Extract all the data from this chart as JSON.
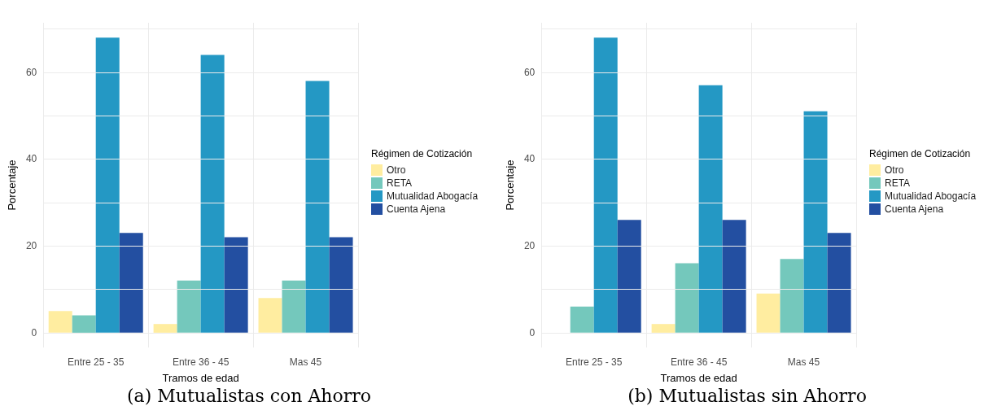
{
  "chart_data": [
    {
      "type": "bar",
      "title": "(a) Mutualistas con Ahorro",
      "xlabel": "Tramos de edad",
      "ylabel": "Porcentaje",
      "legend_title": "Régimen de Cotización",
      "categories": [
        "Entre 25 - 35",
        "Entre 36 - 45",
        "Mas 45"
      ],
      "series": [
        {
          "name": "Otro",
          "color": "#ffeda0",
          "values": [
            5,
            2,
            8
          ]
        },
        {
          "name": "RETA",
          "color": "#74c8bc",
          "values": [
            4,
            12,
            12
          ]
        },
        {
          "name": "Mutualidad Abogacía",
          "color": "#2498c4",
          "values": [
            68,
            64,
            58
          ]
        },
        {
          "name": "Cuenta Ajena",
          "color": "#234fa1",
          "values": [
            23,
            22,
            22
          ]
        }
      ],
      "ylim": [
        -3.4,
        71.4
      ],
      "yticks": [
        0,
        {
          "value": 10,
          "label": null
        },
        20,
        {
          "value": 30,
          "label": null
        },
        40,
        {
          "value": 50,
          "label": null
        },
        60,
        {
          "value": 70,
          "label": null
        }
      ],
      "grid": true,
      "legend": "right"
    },
    {
      "type": "bar",
      "title": "(b) Mutualistas sin Ahorro",
      "xlabel": "Tramos de edad",
      "ylabel": "Porcentaje",
      "legend_title": "Régimen de Cotización",
      "categories": [
        "Entre 25 - 35",
        "Entre 36 - 45",
        "Mas 45"
      ],
      "series": [
        {
          "name": "Otro",
          "color": "#ffeda0",
          "values": [
            null,
            2,
            9
          ]
        },
        {
          "name": "RETA",
          "color": "#74c8bc",
          "values": [
            6,
            16,
            17
          ]
        },
        {
          "name": "Mutualidad Abogacía",
          "color": "#2498c4",
          "values": [
            68,
            57,
            51
          ]
        },
        {
          "name": "Cuenta Ajena",
          "color": "#234fa1",
          "values": [
            26,
            26,
            23
          ]
        }
      ],
      "ylim": [
        -3.4,
        71.4
      ],
      "yticks": [
        0,
        {
          "value": 10,
          "label": null
        },
        20,
        {
          "value": 30,
          "label": null
        },
        40,
        {
          "value": 50,
          "label": null
        },
        60,
        {
          "value": 70,
          "label": null
        }
      ],
      "grid": true,
      "legend": "right"
    }
  ]
}
